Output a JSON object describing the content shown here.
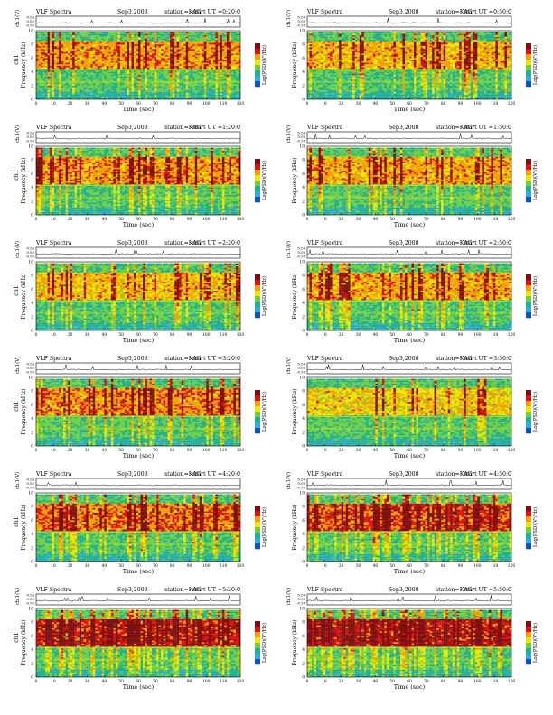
{
  "page": {
    "title_left": "VLF Spectra",
    "date": "Sep3,2008",
    "station": "station=KAG",
    "start_prefix": "start  UT ="
  },
  "chart_data": [
    {
      "type": "heatmap",
      "start_ut": "0:20:0",
      "column": "left",
      "row": 0,
      "ylabel_top": "ch.1(V)",
      "ylabel_main": "ch1",
      "ylabel_freq": "Frequency (kHz)",
      "xlabel": "Time (sec)",
      "xticks": [
        "0",
        "10",
        "20",
        "30",
        "40",
        "50",
        "60",
        "70",
        "80",
        "90",
        "100",
        "110",
        "120"
      ],
      "yticks": [
        "0",
        "2",
        "4",
        "6",
        "8",
        "10"
      ],
      "vticks": [
        "0.50",
        "0.00",
        "-0.50"
      ],
      "colorbar_label": "Log(PSD)(V²/Hz)",
      "xlim": [
        0,
        120
      ],
      "ylim": [
        0,
        10
      ],
      "band_kHz": [
        4.5,
        8.5
      ],
      "activity": 0.55,
      "seed": 11
    },
    {
      "type": "heatmap",
      "start_ut": "0:50:0",
      "column": "right",
      "row": 0,
      "ylabel_top": "ch.1(V)",
      "ylabel_main": "",
      "ylabel_freq": "Frequency (kHz)",
      "xlabel": "Time (sec)",
      "xticks": [
        "0",
        "10",
        "20",
        "30",
        "40",
        "50",
        "60",
        "70",
        "80",
        "90",
        "100",
        "110",
        "120"
      ],
      "yticks": [
        "0",
        "2",
        "4",
        "6",
        "8",
        "10"
      ],
      "vticks": [
        "0.50",
        "0.00",
        "-0.50"
      ],
      "colorbar_label": "Log(PSD)(V²/Hz)",
      "xlim": [
        0,
        120
      ],
      "ylim": [
        0,
        10
      ],
      "band_kHz": [
        4.5,
        8.5
      ],
      "activity": 0.45,
      "seed": 23
    },
    {
      "type": "heatmap",
      "start_ut": "1:20:0",
      "column": "left",
      "row": 1,
      "ylabel_top": "ch.1(V)",
      "ylabel_main": "ch1",
      "ylabel_freq": "Frequency (kHz)",
      "xlabel": "Time (sec)",
      "xticks": [
        "0",
        "10",
        "20",
        "30",
        "40",
        "50",
        "60",
        "70",
        "80",
        "90",
        "100",
        "110",
        "120"
      ],
      "yticks": [
        "0",
        "2",
        "4",
        "6",
        "8",
        "10"
      ],
      "vticks": [
        "0.50",
        "0.00",
        "-0.50"
      ],
      "colorbar_label": "Log(PSD)(V²/Hz)",
      "xlim": [
        0,
        120
      ],
      "ylim": [
        0,
        10
      ],
      "band_kHz": [
        4.5,
        8.5
      ],
      "activity": 0.55,
      "seed": 37
    },
    {
      "type": "heatmap",
      "start_ut": "1:50:0",
      "column": "right",
      "row": 1,
      "ylabel_top": "ch.1(V)",
      "ylabel_main": "",
      "ylabel_freq": "Frequency (kHz)",
      "xlabel": "Time (sec)",
      "xticks": [
        "0",
        "10",
        "20",
        "30",
        "40",
        "50",
        "60",
        "70",
        "80",
        "90",
        "100",
        "110",
        "120"
      ],
      "yticks": [
        "0",
        "2",
        "4",
        "6",
        "8",
        "10"
      ],
      "vticks": [
        "0.50",
        "0.00",
        "-0.50"
      ],
      "colorbar_label": "Log(PSD)(V²/Hz)",
      "xlim": [
        0,
        120
      ],
      "ylim": [
        0,
        10
      ],
      "band_kHz": [
        4.5,
        8.5
      ],
      "activity": 0.5,
      "seed": 41
    },
    {
      "type": "heatmap",
      "start_ut": "2:20:0",
      "column": "left",
      "row": 2,
      "ylabel_top": "ch.1(V)",
      "ylabel_main": "ch1",
      "ylabel_freq": "Frequency (kHz)",
      "xlabel": "Time (sec)",
      "xticks": [
        "0",
        "10",
        "20",
        "30",
        "40",
        "50",
        "60",
        "70",
        "80",
        "90",
        "100",
        "110",
        "120"
      ],
      "yticks": [
        "0",
        "2",
        "4",
        "6",
        "8",
        "10"
      ],
      "vticks": [
        "0.50",
        "0.00",
        "-0.50"
      ],
      "colorbar_label": "Log(PSD)(V²/Hz)",
      "xlim": [
        0,
        120
      ],
      "ylim": [
        0,
        10
      ],
      "band_kHz": [
        4.5,
        8.5
      ],
      "activity": 0.4,
      "seed": 53
    },
    {
      "type": "heatmap",
      "start_ut": "2:50:0",
      "column": "right",
      "row": 2,
      "ylabel_top": "ch.1(V)",
      "ylabel_main": "",
      "ylabel_freq": "Frequency (kHz)",
      "xlabel": "Time (sec)",
      "xticks": [
        "0",
        "10",
        "20",
        "30",
        "40",
        "50",
        "60",
        "70",
        "80",
        "90",
        "100",
        "110",
        "120"
      ],
      "yticks": [
        "0",
        "2",
        "4",
        "6",
        "8",
        "10"
      ],
      "vticks": [
        "0.50",
        "0.00",
        "-0.50"
      ],
      "colorbar_label": "Log(PSD)(V²/Hz)",
      "xlim": [
        0,
        120
      ],
      "ylim": [
        0,
        10
      ],
      "band_kHz": [
        4.5,
        8.5
      ],
      "activity": 0.5,
      "seed": 67
    },
    {
      "type": "heatmap",
      "start_ut": "3:20:0",
      "column": "left",
      "row": 3,
      "ylabel_top": "ch.1(V)",
      "ylabel_main": "ch1",
      "ylabel_freq": "Frequency (kHz)",
      "xlabel": "Time (sec)",
      "xticks": [
        "0",
        "10",
        "20",
        "30",
        "40",
        "50",
        "60",
        "70",
        "80",
        "90",
        "100",
        "110",
        "120"
      ],
      "yticks": [
        "0",
        "2",
        "4",
        "6",
        "8",
        "10"
      ],
      "vticks": [
        "0.50",
        "0.00",
        "-0.50"
      ],
      "colorbar_label": "Log(PSD)(V²/Hz)",
      "xlim": [
        0,
        120
      ],
      "ylim": [
        0,
        10
      ],
      "band_kHz": [
        4.5,
        8.5
      ],
      "activity": 0.6,
      "seed": 71
    },
    {
      "type": "heatmap",
      "start_ut": "3:50:0",
      "column": "right",
      "row": 3,
      "ylabel_top": "ch.1(V)",
      "ylabel_main": "",
      "ylabel_freq": "Frequency (kHz)",
      "xlabel": "Time (sec)",
      "xticks": [
        "0",
        "10",
        "20",
        "30",
        "40",
        "50",
        "60",
        "70",
        "80",
        "90",
        "100",
        "110",
        "120"
      ],
      "yticks": [
        "0",
        "2",
        "4",
        "6",
        "8",
        "10"
      ],
      "vticks": [
        "0.50",
        "0.00",
        "-0.50"
      ],
      "colorbar_label": "Log(PSD)(V²/Hz)",
      "xlim": [
        0,
        120
      ],
      "ylim": [
        0,
        10
      ],
      "band_kHz": [
        4.5,
        8.5
      ],
      "activity": 0.35,
      "seed": 83
    },
    {
      "type": "heatmap",
      "start_ut": "4:20:0",
      "column": "left",
      "row": 4,
      "ylabel_top": "ch.1(V)",
      "ylabel_main": "ch1",
      "ylabel_freq": "Frequency (kHz)",
      "xlabel": "Time (sec)",
      "xticks": [
        "0",
        "10",
        "20",
        "30",
        "40",
        "50",
        "60",
        "70",
        "80",
        "90",
        "100",
        "110",
        "120"
      ],
      "yticks": [
        "0",
        "2",
        "4",
        "6",
        "8",
        "10"
      ],
      "vticks": [
        "0.50",
        "0.00",
        "-0.50"
      ],
      "colorbar_label": "Log(PSD)(V²/Hz)",
      "xlim": [
        0,
        120
      ],
      "ylim": [
        0,
        10
      ],
      "band_kHz": [
        4.5,
        8.5
      ],
      "activity": 0.65,
      "seed": 97
    },
    {
      "type": "heatmap",
      "start_ut": "4:50:0",
      "column": "right",
      "row": 4,
      "ylabel_top": "ch.1(V)",
      "ylabel_main": "",
      "ylabel_freq": "Frequency (kHz)",
      "xlabel": "Time (sec)",
      "xticks": [
        "0",
        "10",
        "20",
        "30",
        "40",
        "50",
        "60",
        "70",
        "80",
        "90",
        "100",
        "110",
        "120"
      ],
      "yticks": [
        "0",
        "2",
        "4",
        "6",
        "8",
        "10"
      ],
      "vticks": [
        "0.50",
        "0.00",
        "-0.50"
      ],
      "colorbar_label": "Log(PSD)(V²/Hz)",
      "xlim": [
        0,
        120
      ],
      "ylim": [
        0,
        10
      ],
      "band_kHz": [
        4.5,
        8.5
      ],
      "activity": 0.75,
      "seed": 101
    },
    {
      "type": "heatmap",
      "start_ut": "5:20:0",
      "column": "left",
      "row": 5,
      "ylabel_top": "ch.1(V)",
      "ylabel_main": "ch1",
      "ylabel_freq": "Frequency (kHz)",
      "xlabel": "Time (sec)",
      "xticks": [
        "0",
        "10",
        "20",
        "30",
        "40",
        "50",
        "60",
        "70",
        "80",
        "90",
        "100",
        "110",
        "120"
      ],
      "yticks": [
        "0",
        "2",
        "4",
        "6",
        "8",
        "10"
      ],
      "vticks": [
        "0.50",
        "0.00",
        "-0.50"
      ],
      "colorbar_label": "Log(PSD)(V²/Hz)",
      "xlim": [
        0,
        120
      ],
      "ylim": [
        0,
        10
      ],
      "band_kHz": [
        4.5,
        8.5
      ],
      "activity": 0.85,
      "seed": 113
    },
    {
      "type": "heatmap",
      "start_ut": "5:50:0",
      "column": "right",
      "row": 5,
      "ylabel_top": "ch.1(V)",
      "ylabel_main": "",
      "ylabel_freq": "Frequency (kHz)",
      "xlabel": "Time (sec)",
      "xticks": [
        "0",
        "10",
        "20",
        "30",
        "40",
        "50",
        "60",
        "70",
        "80",
        "90",
        "100",
        "110",
        "120"
      ],
      "yticks": [
        "0",
        "2",
        "4",
        "6",
        "8",
        "10"
      ],
      "vticks": [
        "0.50",
        "0.00",
        "-0.50"
      ],
      "colorbar_label": "Log(PSD)(V²/Hz)",
      "xlim": [
        0,
        120
      ],
      "ylim": [
        0,
        10
      ],
      "band_kHz": [
        4.5,
        8.5
      ],
      "activity": 0.9,
      "seed": 127
    }
  ]
}
